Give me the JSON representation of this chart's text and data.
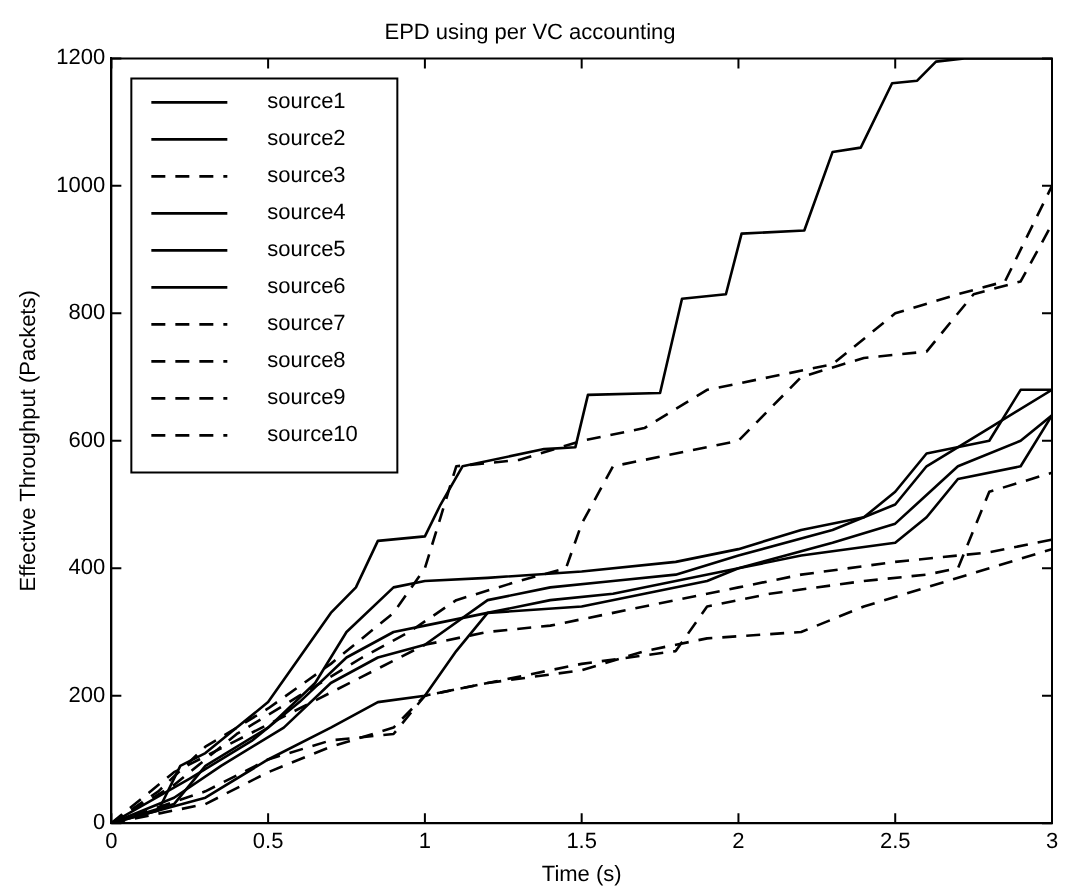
{
  "chart_data": {
    "type": "line",
    "title": "EPD using per VC accounting",
    "xlabel": "Time (s)",
    "ylabel": "Effective Throughput (Packets)",
    "xlim": [
      0,
      3
    ],
    "xticks": [
      0,
      0.5,
      1,
      1.5,
      2,
      2.5,
      3
    ],
    "ylim": [
      0,
      1200
    ],
    "yticks": [
      0,
      200,
      400,
      600,
      800,
      1000,
      1200
    ],
    "grid": false,
    "legend": "top left",
    "marker": "none",
    "series": [
      {
        "name": "source1",
        "color": "#000000",
        "line_style": "solid",
        "x": [
          0,
          0.15,
          0.22,
          0.3,
          0.4,
          0.5,
          0.6,
          0.7,
          0.78,
          0.85,
          1.0,
          1.05,
          1.12,
          1.38,
          1.48,
          1.52,
          1.75,
          1.82,
          1.96,
          2.01,
          2.21,
          2.3,
          2.39,
          2.49,
          2.57,
          2.63,
          2.72,
          3
        ],
        "values": [
          0,
          20,
          90,
          110,
          150,
          190,
          260,
          330,
          370,
          443,
          450,
          500,
          560,
          587,
          590,
          672,
          675,
          823,
          830,
          925,
          930,
          1053,
          1060,
          1161,
          1165,
          1195,
          1200,
          1200
        ]
      },
      {
        "name": "source2",
        "color": "#000000",
        "line_style": "solid",
        "x": [
          0,
          0.2,
          0.3,
          0.5,
          0.65,
          0.75,
          0.9,
          1.0,
          1.2,
          1.5,
          1.8,
          2.0,
          2.2,
          2.4,
          2.5,
          2.6,
          2.8,
          2.9,
          3
        ],
        "values": [
          0,
          30,
          90,
          150,
          220,
          300,
          370,
          380,
          385,
          395,
          410,
          430,
          460,
          480,
          520,
          580,
          600,
          680,
          680
        ]
      },
      {
        "name": "source3",
        "color": "#000000",
        "line_style": "dashed",
        "x": [
          0,
          0.15,
          0.3,
          0.5,
          0.7,
          0.9,
          1.0,
          1.05,
          1.1,
          1.3,
          1.5,
          1.7,
          1.9,
          2.1,
          2.3,
          2.5,
          2.7,
          2.85,
          2.95,
          3
        ],
        "values": [
          0,
          50,
          120,
          180,
          250,
          330,
          400,
          480,
          560,
          570,
          600,
          620,
          680,
          700,
          720,
          800,
          830,
          850,
          950,
          1000
        ]
      },
      {
        "name": "source4",
        "color": "#000000",
        "line_style": "solid",
        "x": [
          0,
          0.3,
          0.5,
          0.7,
          0.85,
          1.0,
          1.1,
          1.2,
          1.5,
          1.7,
          1.9,
          2.0,
          2.2,
          2.5,
          2.6,
          2.7,
          2.9,
          3
        ],
        "values": [
          0,
          40,
          100,
          150,
          190,
          200,
          270,
          330,
          340,
          360,
          380,
          400,
          420,
          440,
          480,
          540,
          560,
          640
        ]
      },
      {
        "name": "source5",
        "color": "#000000",
        "line_style": "solid",
        "x": [
          0,
          0.25,
          0.45,
          0.6,
          0.75,
          0.9,
          1.0,
          1.2,
          1.4,
          1.6,
          1.8,
          2.0,
          2.3,
          2.5,
          2.7,
          2.9,
          3
        ],
        "values": [
          0,
          70,
          130,
          190,
          260,
          300,
          310,
          330,
          350,
          360,
          380,
          400,
          440,
          470,
          560,
          600,
          640
        ]
      },
      {
        "name": "source6",
        "color": "#000000",
        "line_style": "solid",
        "x": [
          0,
          0.2,
          0.35,
          0.55,
          0.7,
          0.85,
          1.0,
          1.2,
          1.4,
          1.6,
          1.8,
          2.0,
          2.3,
          2.5,
          2.6,
          2.8,
          3
        ],
        "values": [
          0,
          40,
          90,
          150,
          220,
          260,
          280,
          350,
          370,
          380,
          390,
          420,
          460,
          500,
          560,
          620,
          680
        ]
      },
      {
        "name": "source7",
        "color": "#000000",
        "line_style": "dashed",
        "x": [
          0,
          0.2,
          0.4,
          0.6,
          0.8,
          0.95,
          1.1,
          1.3,
          1.45,
          1.5,
          1.6,
          1.8,
          2.0,
          2.2,
          2.4,
          2.6,
          2.75,
          2.9,
          3
        ],
        "values": [
          0,
          60,
          140,
          200,
          260,
          300,
          350,
          380,
          400,
          470,
          560,
          580,
          600,
          700,
          730,
          740,
          830,
          850,
          940
        ]
      },
      {
        "name": "source8",
        "color": "#000000",
        "line_style": "dashed",
        "x": [
          0,
          0.3,
          0.5,
          0.7,
          0.9,
          1.0,
          1.2,
          1.5,
          1.8,
          1.9,
          2.1,
          2.4,
          2.6,
          2.7,
          2.8,
          3
        ],
        "values": [
          0,
          50,
          100,
          130,
          140,
          200,
          220,
          250,
          270,
          340,
          360,
          380,
          390,
          400,
          520,
          550
        ]
      },
      {
        "name": "source9",
        "color": "#000000",
        "line_style": "dashed",
        "x": [
          0,
          0.3,
          0.5,
          0.7,
          0.9,
          1.0,
          1.2,
          1.5,
          1.7,
          1.9,
          2.2,
          2.4,
          2.6,
          2.8,
          3
        ],
        "values": [
          0,
          30,
          80,
          120,
          150,
          200,
          220,
          240,
          270,
          290,
          300,
          340,
          370,
          400,
          430
        ]
      },
      {
        "name": "source10",
        "color": "#000000",
        "line_style": "dashed",
        "x": [
          0,
          0.2,
          0.4,
          0.6,
          0.8,
          1.0,
          1.2,
          1.4,
          1.6,
          1.8,
          2.0,
          2.2,
          2.5,
          2.8,
          3
        ],
        "values": [
          0,
          80,
          130,
          180,
          230,
          280,
          300,
          310,
          330,
          350,
          370,
          390,
          410,
          425,
          445
        ]
      }
    ]
  }
}
